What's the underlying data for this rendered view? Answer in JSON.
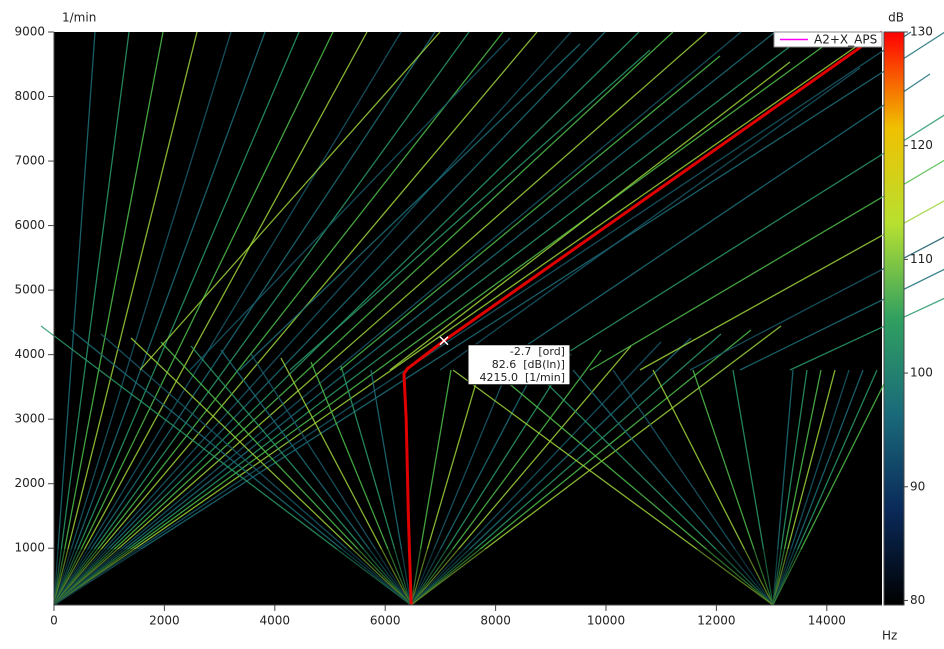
{
  "chart_data": {
    "type": "spectrogram",
    "x_label": "Hz",
    "y_label": "1/min",
    "xlim": [
      0,
      15000
    ],
    "ylim": [
      120,
      9000
    ],
    "xticks": [
      0,
      2000,
      4000,
      6000,
      8000,
      10000,
      12000,
      14000
    ],
    "yticks": [
      1000,
      2000,
      3000,
      4000,
      5000,
      6000,
      7000,
      8000,
      9000
    ],
    "series": [
      {
        "name": "A2+X_APS",
        "color": "#e00000",
        "legend_color": "#ff00ff",
        "x": [
          6470,
          6420,
          6380,
          6340,
          6400,
          7065,
          15000
        ],
        "values": [
          130,
          1500,
          3000,
          3700,
          3780,
          4215,
          9000
        ]
      }
    ],
    "cursor": {
      "x": 7065,
      "y": 4215,
      "labels": [
        "-2.7  [ord]",
        "82.6  [dB(ln)]",
        "4215.0  [1/min]"
      ]
    },
    "colorbar": {
      "label": "dB",
      "lim": [
        79.6,
        130
      ],
      "ticks": [
        80,
        90,
        100,
        110,
        120,
        130
      ],
      "colors": [
        "#000000",
        "#0a2a5a",
        "#1a6a7a",
        "#30a060",
        "#b8e030",
        "#f0c000",
        "#ff0000"
      ]
    },
    "legend": "top-right"
  }
}
